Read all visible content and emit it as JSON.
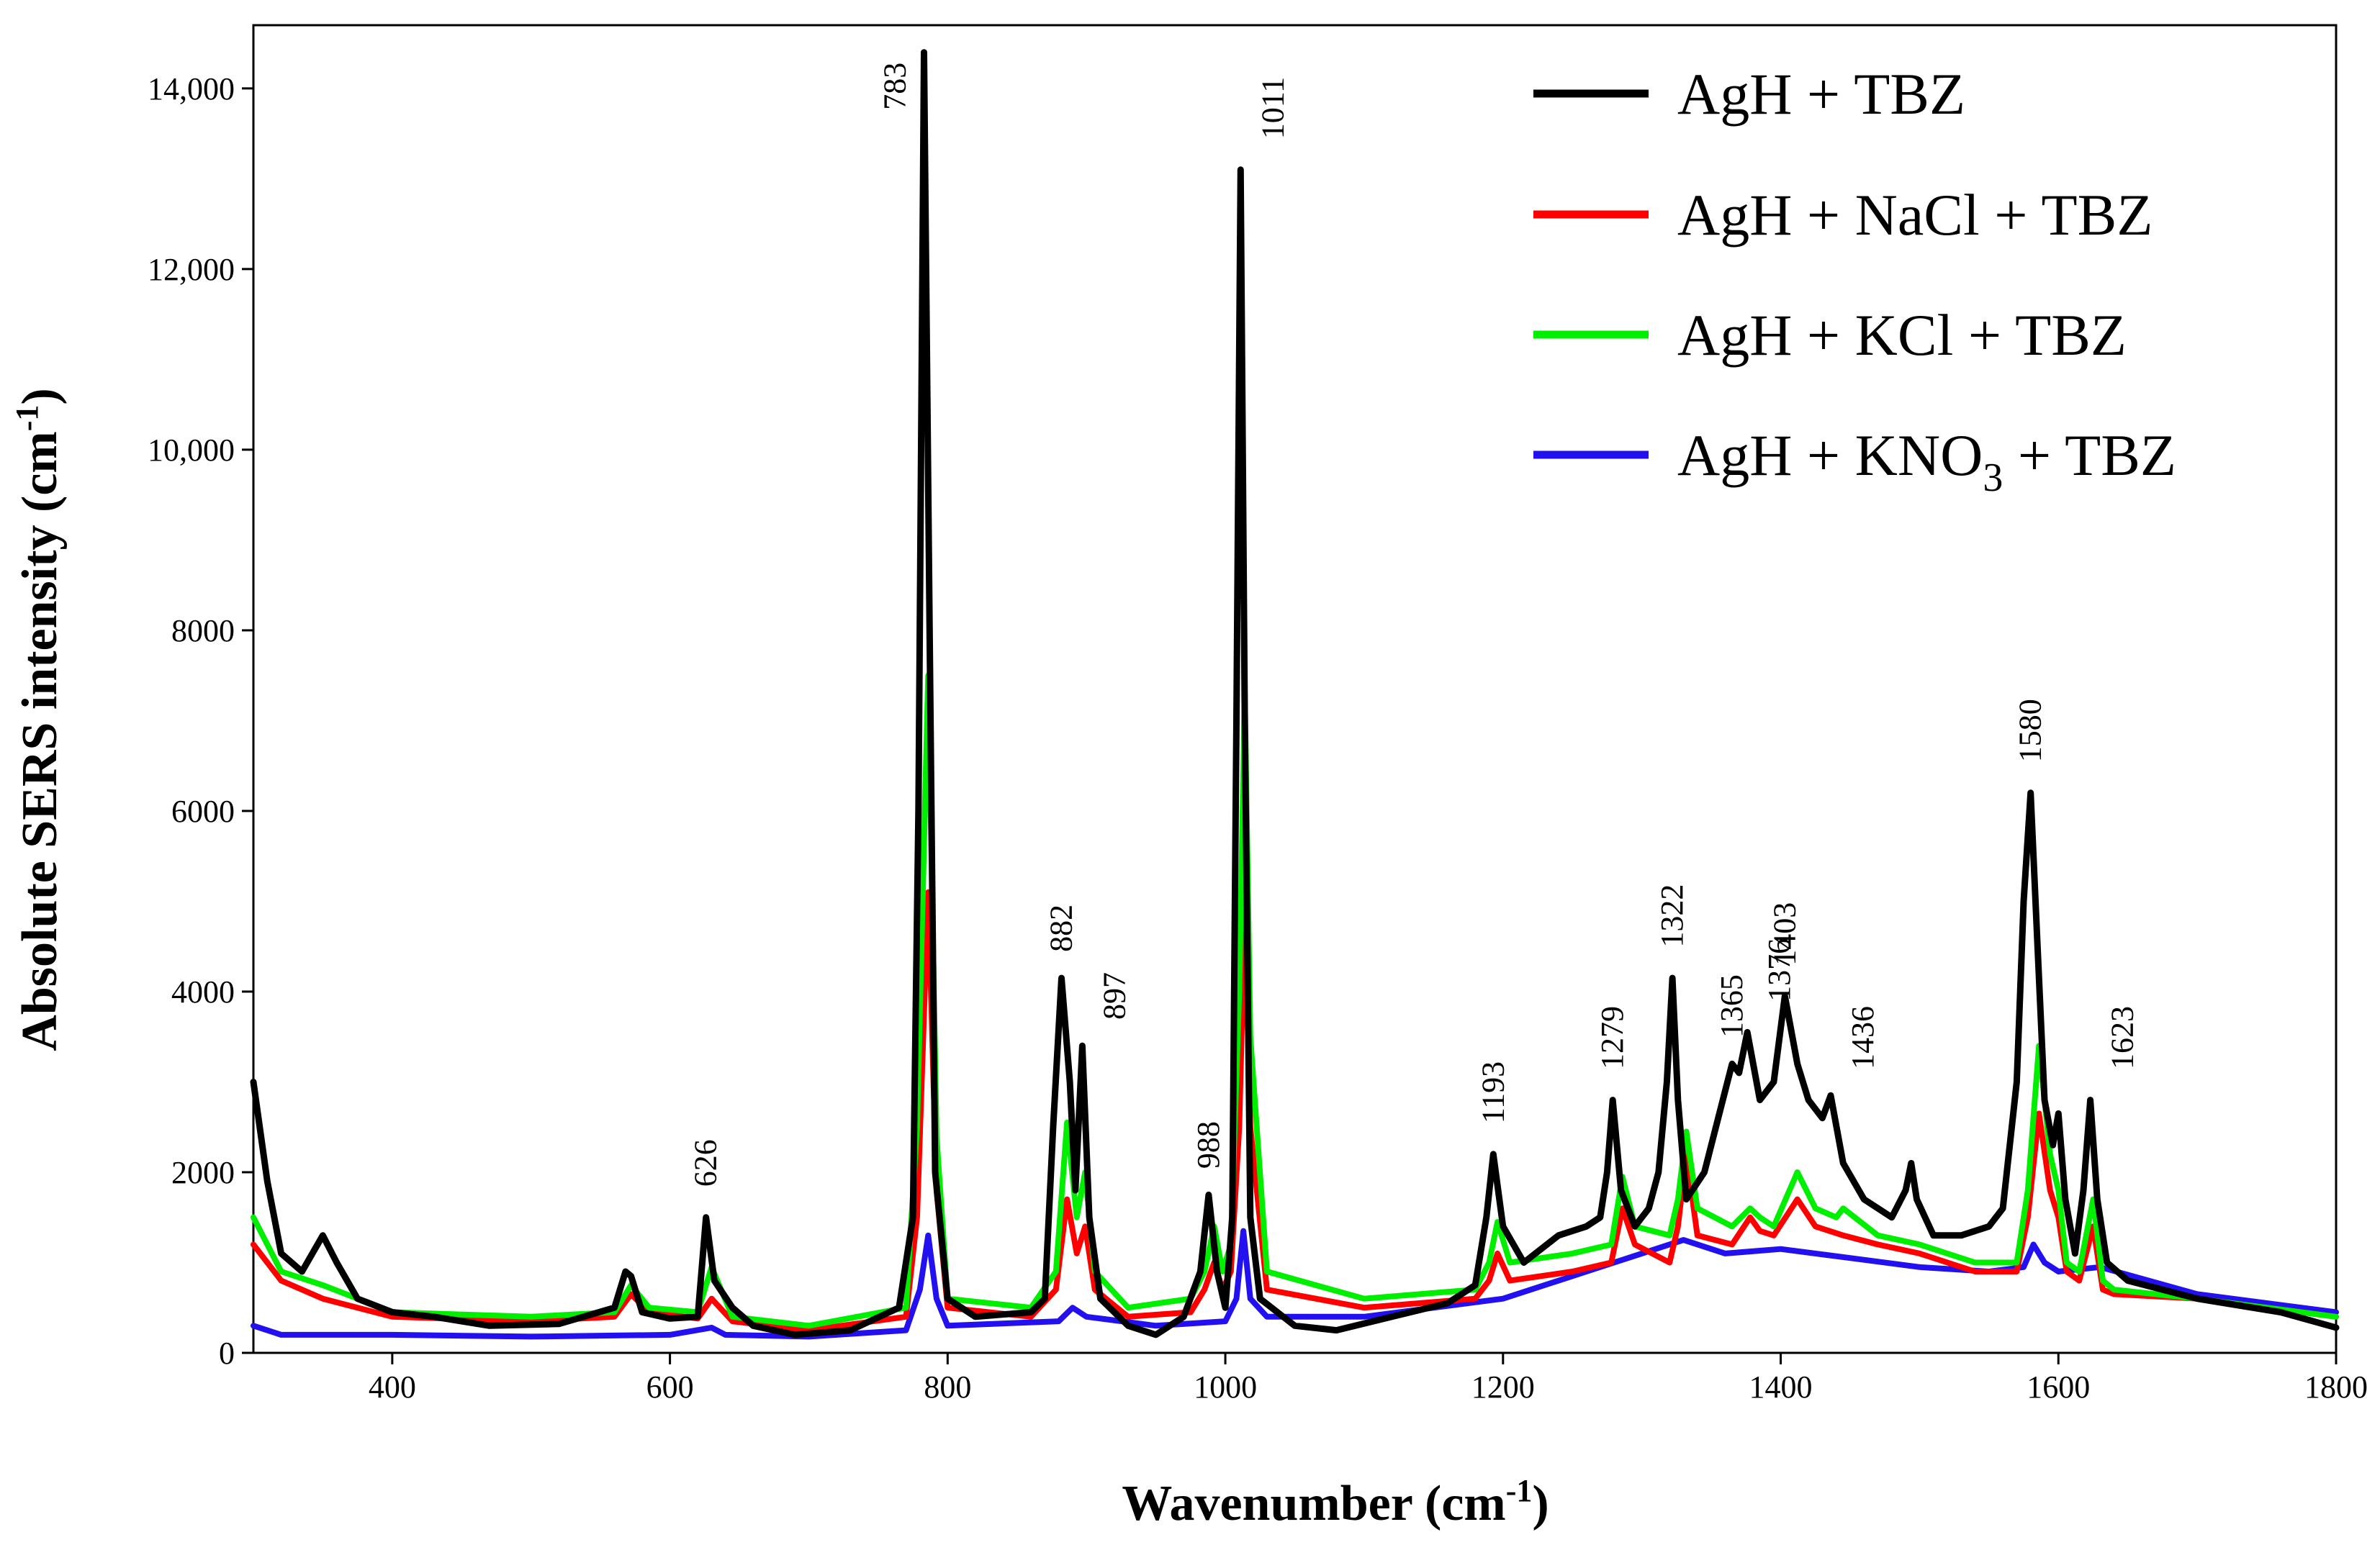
{
  "chart_data": {
    "type": "line",
    "title": "",
    "xlabel": "Wavenumber (cm",
    "xlabel_sup": "-1",
    "xlabel_close": ")",
    "ylabel": "Absolute SERS intensity (cm",
    "ylabel_sup": "-1",
    "ylabel_close": ")",
    "xlim": [
      300,
      1800
    ],
    "ylim": [
      0,
      14700
    ],
    "grid": false,
    "legend_position": "top-right",
    "x_ticks": [
      400,
      600,
      800,
      1000,
      1200,
      1400,
      1600,
      1800
    ],
    "x_tick_labels": [
      "400",
      "600",
      "800",
      "1000",
      "1200",
      "1400",
      "1600",
      "1800"
    ],
    "y_ticks": [
      0,
      2000,
      4000,
      6000,
      8000,
      10000,
      12000,
      14000
    ],
    "y_tick_labels": [
      "0",
      "2000",
      "4000",
      "6000",
      "8000",
      "10,000",
      "12,000",
      "14,000"
    ],
    "series": [
      {
        "name": "AgH + TBZ",
        "legend_main": "AgH + TBZ",
        "legend_sub": "",
        "legend_tail": "",
        "color": "#000000",
        "x": [
          300,
          310,
          320,
          335,
          350,
          360,
          375,
          400,
          430,
          470,
          520,
          560,
          568,
          572,
          580,
          600,
          620,
          626,
          632,
          645,
          660,
          690,
          730,
          765,
          775,
          779,
          783,
          787,
          791,
          800,
          820,
          860,
          870,
          876,
          882,
          888,
          892,
          897,
          902,
          910,
          930,
          950,
          970,
          982,
          988,
          994,
          1000,
          1005,
          1008,
          1011,
          1014,
          1018,
          1025,
          1050,
          1080,
          1120,
          1160,
          1180,
          1188,
          1193,
          1200,
          1215,
          1240,
          1260,
          1270,
          1275,
          1279,
          1285,
          1295,
          1305,
          1312,
          1318,
          1322,
          1326,
          1332,
          1345,
          1355,
          1365,
          1370,
          1376,
          1385,
          1395,
          1403,
          1412,
          1420,
          1430,
          1436,
          1445,
          1460,
          1480,
          1490,
          1494,
          1498,
          1510,
          1530,
          1550,
          1560,
          1570,
          1575,
          1580,
          1585,
          1590,
          1596,
          1600,
          1605,
          1612,
          1618,
          1623,
          1628,
          1635,
          1650,
          1700,
          1760,
          1800
        ],
        "y": [
          3000,
          1900,
          1100,
          900,
          1300,
          1000,
          600,
          450,
          400,
          300,
          320,
          500,
          900,
          850,
          450,
          380,
          400,
          1500,
          800,
          500,
          300,
          200,
          250,
          500,
          1500,
          6000,
          14400,
          8000,
          2000,
          600,
          400,
          450,
          600,
          2500,
          4150,
          3000,
          1800,
          3400,
          1500,
          600,
          300,
          200,
          400,
          900,
          1750,
          900,
          500,
          1500,
          7000,
          13100,
          7000,
          1500,
          600,
          300,
          250,
          400,
          550,
          750,
          1500,
          2200,
          1400,
          1000,
          1300,
          1400,
          1500,
          2000,
          2800,
          1800,
          1400,
          1600,
          2000,
          3000,
          4150,
          2800,
          1700,
          2000,
          2600,
          3200,
          3100,
          3550,
          2800,
          3000,
          3950,
          3200,
          2800,
          2600,
          2850,
          2100,
          1700,
          1500,
          1800,
          2100,
          1700,
          1300,
          1300,
          1400,
          1600,
          3000,
          5000,
          6200,
          4500,
          2800,
          2300,
          2650,
          1700,
          1100,
          1800,
          2800,
          1700,
          1000,
          800,
          600,
          450,
          280
        ]
      },
      {
        "name": "AgH + NaCl + TBZ",
        "legend_main": "AgH + NaCl + TBZ",
        "legend_sub": "",
        "legend_tail": "",
        "color": "#ff0000",
        "x": [
          300,
          320,
          350,
          400,
          500,
          560,
          572,
          585,
          620,
          630,
          645,
          700,
          770,
          778,
          786,
          792,
          800,
          860,
          878,
          886,
          893,
          899,
          906,
          930,
          975,
          985,
          992,
          998,
          1004,
          1010,
          1014,
          1018,
          1030,
          1100,
          1180,
          1190,
          1196,
          1205,
          1250,
          1278,
          1286,
          1295,
          1320,
          1326,
          1332,
          1340,
          1365,
          1378,
          1385,
          1395,
          1412,
          1425,
          1445,
          1470,
          1500,
          1540,
          1570,
          1578,
          1586,
          1594,
          1600,
          1606,
          1615,
          1625,
          1632,
          1640,
          1700,
          1800
        ],
        "y": [
          1200,
          800,
          600,
          400,
          350,
          400,
          650,
          450,
          380,
          600,
          350,
          250,
          400,
          1500,
          5100,
          1800,
          500,
          400,
          700,
          1700,
          1100,
          1400,
          700,
          400,
          450,
          700,
          1000,
          700,
          900,
          2500,
          4900,
          2500,
          700,
          500,
          600,
          800,
          1100,
          800,
          900,
          1000,
          1600,
          1200,
          1000,
          1400,
          2200,
          1300,
          1200,
          1500,
          1350,
          1300,
          1700,
          1400,
          1300,
          1200,
          1100,
          900,
          900,
          1500,
          2650,
          1800,
          1500,
          900,
          800,
          1400,
          700,
          650,
          600,
          400
        ]
      },
      {
        "name": "AgH + KCl + TBZ",
        "legend_main": "AgH + KCl + TBZ",
        "legend_sub": "",
        "legend_tail": "",
        "color": "#00ee00",
        "x": [
          300,
          320,
          350,
          400,
          500,
          560,
          572,
          585,
          620,
          630,
          645,
          700,
          770,
          778,
          786,
          792,
          800,
          860,
          878,
          886,
          893,
          899,
          906,
          930,
          975,
          985,
          992,
          998,
          1004,
          1010,
          1014,
          1018,
          1030,
          1100,
          1180,
          1190,
          1196,
          1205,
          1250,
          1278,
          1286,
          1295,
          1320,
          1326,
          1332,
          1340,
          1365,
          1378,
          1385,
          1395,
          1412,
          1425,
          1440,
          1445,
          1470,
          1500,
          1540,
          1570,
          1578,
          1586,
          1594,
          1600,
          1606,
          1615,
          1625,
          1632,
          1640,
          1700,
          1800
        ],
        "y": [
          1500,
          900,
          750,
          450,
          400,
          450,
          750,
          500,
          450,
          950,
          400,
          300,
          500,
          2500,
          7500,
          2400,
          600,
          500,
          900,
          2550,
          1500,
          2000,
          900,
          500,
          600,
          900,
          1400,
          900,
          1200,
          4000,
          7300,
          3500,
          900,
          600,
          700,
          1000,
          1450,
          1000,
          1100,
          1200,
          1950,
          1400,
          1300,
          1700,
          2450,
          1600,
          1400,
          1600,
          1500,
          1400,
          2000,
          1600,
          1500,
          1600,
          1300,
          1200,
          1000,
          1000,
          1800,
          3400,
          2200,
          1800,
          1000,
          900,
          1700,
          800,
          700,
          600,
          400
        ]
      },
      {
        "name": "AgH + KNO3 + TBZ",
        "legend_main": "AgH + KNO",
        "legend_sub": "3",
        "legend_tail": " + TBZ",
        "color": "#2211ee",
        "x": [
          300,
          320,
          400,
          500,
          600,
          630,
          640,
          700,
          770,
          780,
          786,
          792,
          800,
          880,
          890,
          900,
          950,
          1000,
          1008,
          1013,
          1018,
          1030,
          1100,
          1200,
          1280,
          1330,
          1360,
          1400,
          1450,
          1500,
          1550,
          1575,
          1582,
          1590,
          1600,
          1630,
          1700,
          1800
        ],
        "y": [
          300,
          200,
          200,
          180,
          200,
          280,
          200,
          180,
          250,
          700,
          1300,
          600,
          300,
          350,
          500,
          400,
          300,
          350,
          600,
          1350,
          600,
          400,
          400,
          600,
          1000,
          1250,
          1100,
          1150,
          1050,
          950,
          900,
          950,
          1200,
          1000,
          900,
          950,
          650,
          450
        ]
      }
    ],
    "annotations": [
      {
        "text": "626",
        "x": 626,
        "y": 1600,
        "rotate": -90
      },
      {
        "text": "783",
        "x": 783,
        "y": 14400,
        "rotate": -90,
        "side": "left"
      },
      {
        "text": "882",
        "x": 882,
        "y": 4200,
        "rotate": -90
      },
      {
        "text": "897",
        "x": 897,
        "y": 3450,
        "rotate": -90,
        "side": "right"
      },
      {
        "text": "988",
        "x": 988,
        "y": 1800,
        "rotate": -90
      },
      {
        "text": "1011",
        "x": 1011,
        "y": 13200,
        "rotate": -90,
        "side": "right"
      },
      {
        "text": "1193",
        "x": 1193,
        "y": 2300,
        "rotate": -90
      },
      {
        "text": "1279",
        "x": 1279,
        "y": 2900,
        "rotate": -90
      },
      {
        "text": "1322",
        "x": 1322,
        "y": 4250,
        "rotate": -90
      },
      {
        "text": "1365",
        "x": 1365,
        "y": 3250,
        "rotate": -90
      },
      {
        "text": "1376",
        "x": 1376,
        "y": 3650,
        "rotate": -90,
        "side": "right"
      },
      {
        "text": "1403",
        "x": 1403,
        "y": 4050,
        "rotate": -90
      },
      {
        "text": "1436",
        "x": 1436,
        "y": 2900,
        "rotate": -90,
        "side": "right"
      },
      {
        "text": "1580",
        "x": 1580,
        "y": 6300,
        "rotate": -90
      },
      {
        "text": "1623",
        "x": 1623,
        "y": 2900,
        "rotate": -90,
        "side": "right"
      }
    ]
  }
}
